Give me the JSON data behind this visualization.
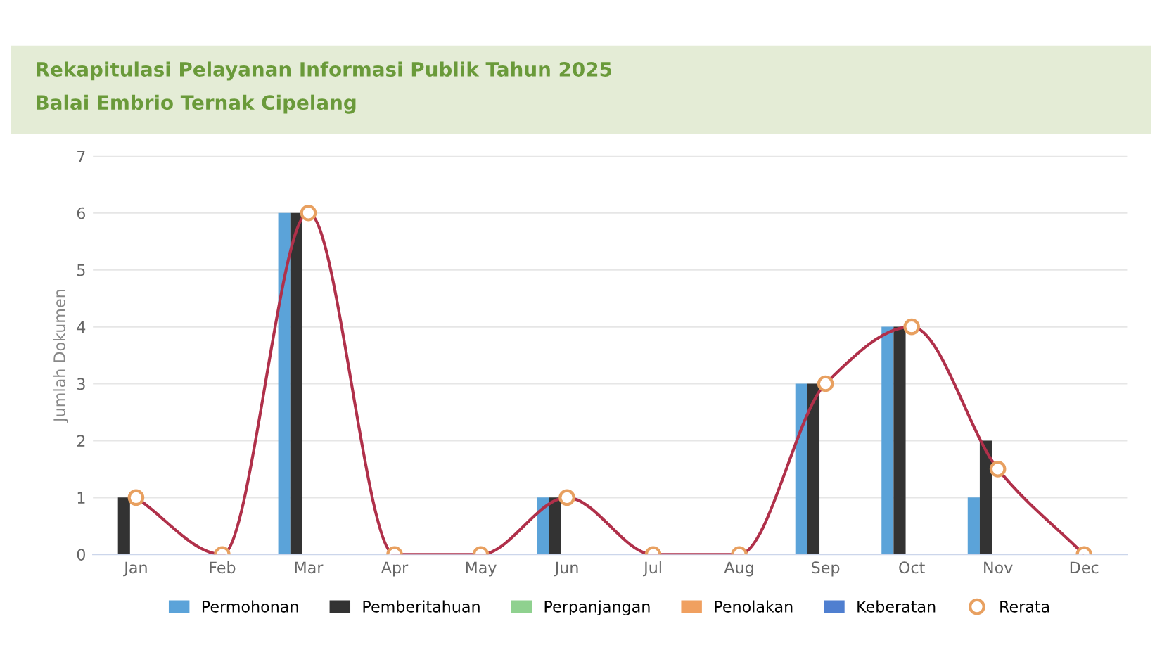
{
  "chart_data": {
    "type": "bar",
    "title": "Rekapitulasi Pelayanan Informasi Publik Tahun 2025",
    "subtitle": "Balai Embrio Ternak Cipelang",
    "ylabel": "Jumlah Dokumen",
    "categories": [
      "Jan",
      "Feb",
      "Mar",
      "Apr",
      "May",
      "Jun",
      "Jul",
      "Aug",
      "Sep",
      "Oct",
      "Nov",
      "Dec"
    ],
    "series": [
      {
        "name": "Permohonan",
        "color": "#5ba3d9",
        "values": [
          0,
          0,
          6,
          0,
          0,
          1,
          0,
          0,
          3,
          4,
          1,
          0
        ]
      },
      {
        "name": "Pemberitahuan",
        "color": "#333333",
        "values": [
          1,
          0,
          6,
          0,
          0,
          1,
          0,
          0,
          3,
          4,
          2,
          0
        ]
      },
      {
        "name": "Perpanjangan",
        "color": "#8fd18f",
        "values": [
          0,
          0,
          0,
          0,
          0,
          0,
          0,
          0,
          0,
          0,
          0,
          0
        ]
      },
      {
        "name": "Penolakan",
        "color": "#f0a060",
        "values": [
          0,
          0,
          0,
          0,
          0,
          0,
          0,
          0,
          0,
          0,
          0,
          0
        ]
      },
      {
        "name": "Keberatan",
        "color": "#4f7fd0",
        "values": [
          0,
          0,
          0,
          0,
          0,
          0,
          0,
          0,
          0,
          0,
          0,
          0
        ]
      },
      {
        "name": "Rerata",
        "type": "line",
        "color": "#b0304a",
        "marker": "circle",
        "values": [
          1,
          0,
          6,
          0,
          0,
          1,
          0,
          0,
          3,
          4,
          1.5,
          0
        ]
      }
    ],
    "ylim": [
      0,
      7
    ],
    "yticks": [
      0,
      1,
      2,
      3,
      4,
      5,
      6,
      7
    ],
    "grid": "y",
    "legend": "bottom"
  }
}
